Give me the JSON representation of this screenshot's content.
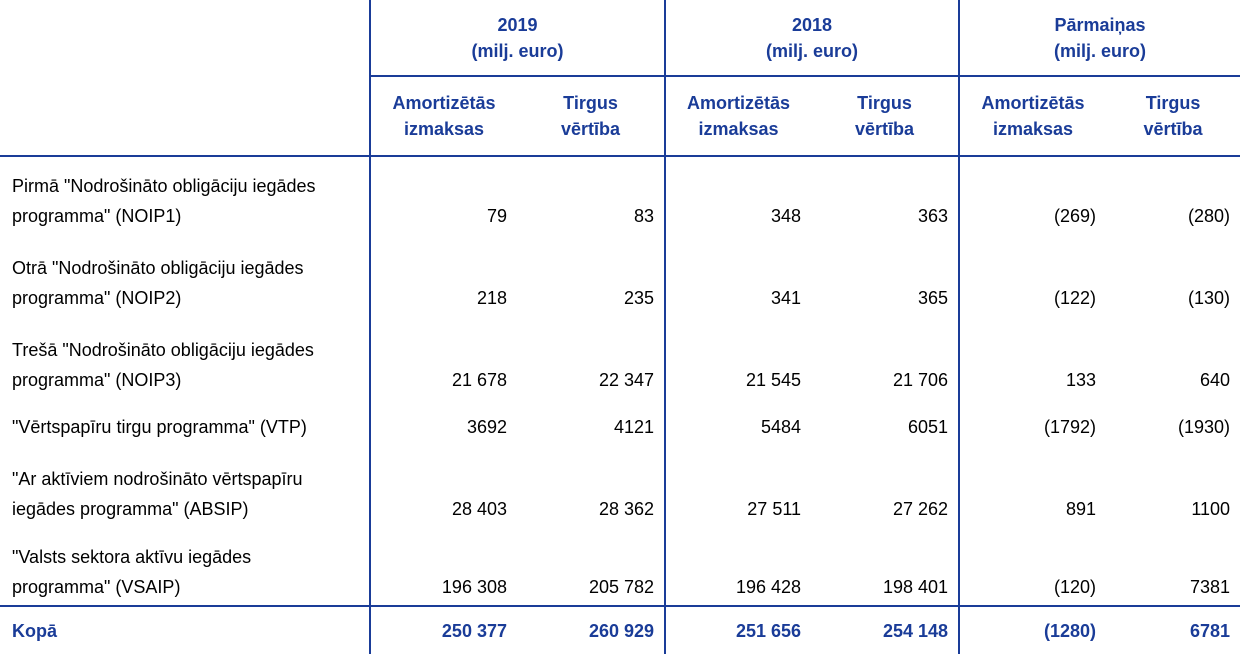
{
  "groups": [
    {
      "year": "2019",
      "unit": "(milj. euro)"
    },
    {
      "year": "2018",
      "unit": "(milj. euro)"
    },
    {
      "year": "Pārmaiņas",
      "unit": "(milj. euro)"
    }
  ],
  "subheaders": {
    "amortized_line1": "Amortizētās",
    "amortized_line2": "izmaksas",
    "market_line1": "Tirgus",
    "market_line2": "vērtība"
  },
  "rows": [
    {
      "label_line1": "Pirmā \"Nodrošināto obligāciju iegādes",
      "label_line2": "programma\" (NOIP1)",
      "values": [
        "79",
        "83",
        "348",
        "363",
        "(269)",
        "(280)"
      ]
    },
    {
      "label_line1": "Otrā \"Nodrošināto obligāciju iegādes",
      "label_line2": "programma\" (NOIP2)",
      "values": [
        "218",
        "235",
        "341",
        "365",
        "(122)",
        "(130)"
      ]
    },
    {
      "label_line1": "Trešā \"Nodrošināto obligāciju iegādes",
      "label_line2": "programma\" (NOIP3)",
      "values": [
        "21 678",
        "22 347",
        "21 545",
        "21 706",
        "133",
        "640"
      ]
    },
    {
      "label_line1": "\"Vērtspapīru tirgu programma\" (VTP)",
      "label_line2": "",
      "values": [
        "3692",
        "4121",
        "5484",
        "6051",
        "(1792)",
        "(1930)"
      ]
    },
    {
      "label_line1": "\"Ar aktīviem nodrošināto vērtspapīru",
      "label_line2": "iegādes programma\" (ABSIP)",
      "values": [
        "28 403",
        "28 362",
        "27 511",
        "27 262",
        "891",
        "1100"
      ]
    },
    {
      "label_line1": "\"Valsts sektora aktīvu iegādes",
      "label_line2": "programma\" (VSAIP)",
      "values": [
        "196 308",
        "205 782",
        "196 428",
        "198 401",
        "(120)",
        "7381"
      ]
    }
  ],
  "total": {
    "label": "Kopā",
    "values": [
      "250 377",
      "260 929",
      "251 656",
      "254 148",
      "(1280)",
      "6781"
    ]
  }
}
